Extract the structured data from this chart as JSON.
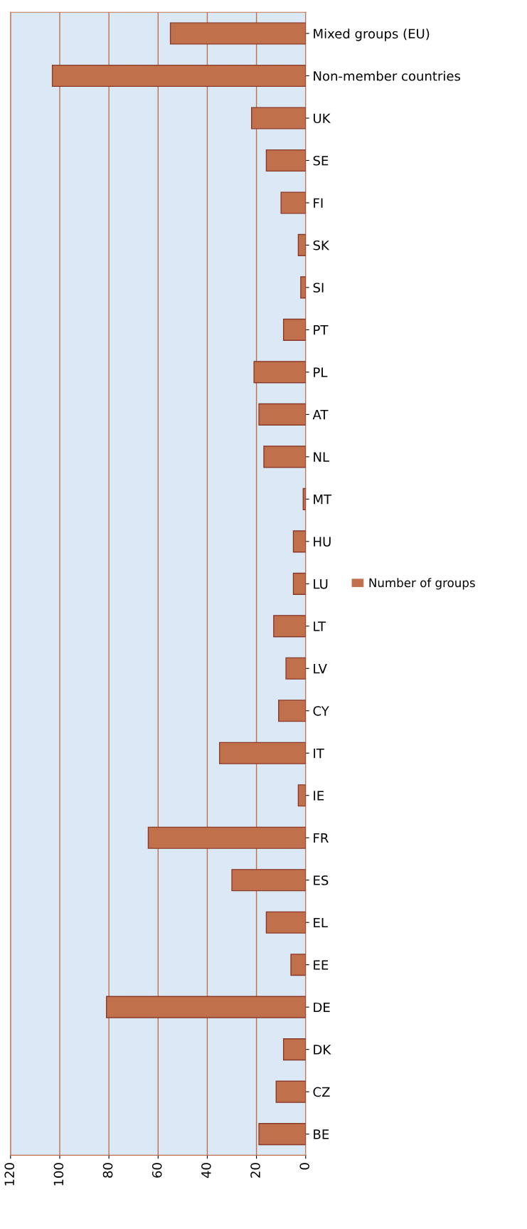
{
  "chart_data": {
    "type": "bar",
    "orientation": "horizontal",
    "categories": [
      "Mixed groups (EU)",
      "Non-member countries",
      "UK",
      "SE",
      "FI",
      "SK",
      "SI",
      "PT",
      "PL",
      "AT",
      "NL",
      "MT",
      "HU",
      "LU",
      "LT",
      "LV",
      "CY",
      "IT",
      "IE",
      "FR",
      "ES",
      "EL",
      "EE",
      "DE",
      "DK",
      "CZ",
      "BE"
    ],
    "series": [
      {
        "name": "Number of groups",
        "color": "#c0704a",
        "values": [
          55,
          103,
          22,
          16,
          10,
          3,
          2,
          9,
          21,
          19,
          17,
          1,
          5,
          5,
          13,
          8,
          11,
          35,
          3,
          64,
          30,
          16,
          6,
          81,
          9,
          12,
          19
        ]
      }
    ],
    "xlim": [
      120,
      0
    ],
    "xticks": [
      0,
      20,
      40,
      60,
      80,
      100,
      120
    ],
    "grid": "x",
    "legend": "right"
  }
}
